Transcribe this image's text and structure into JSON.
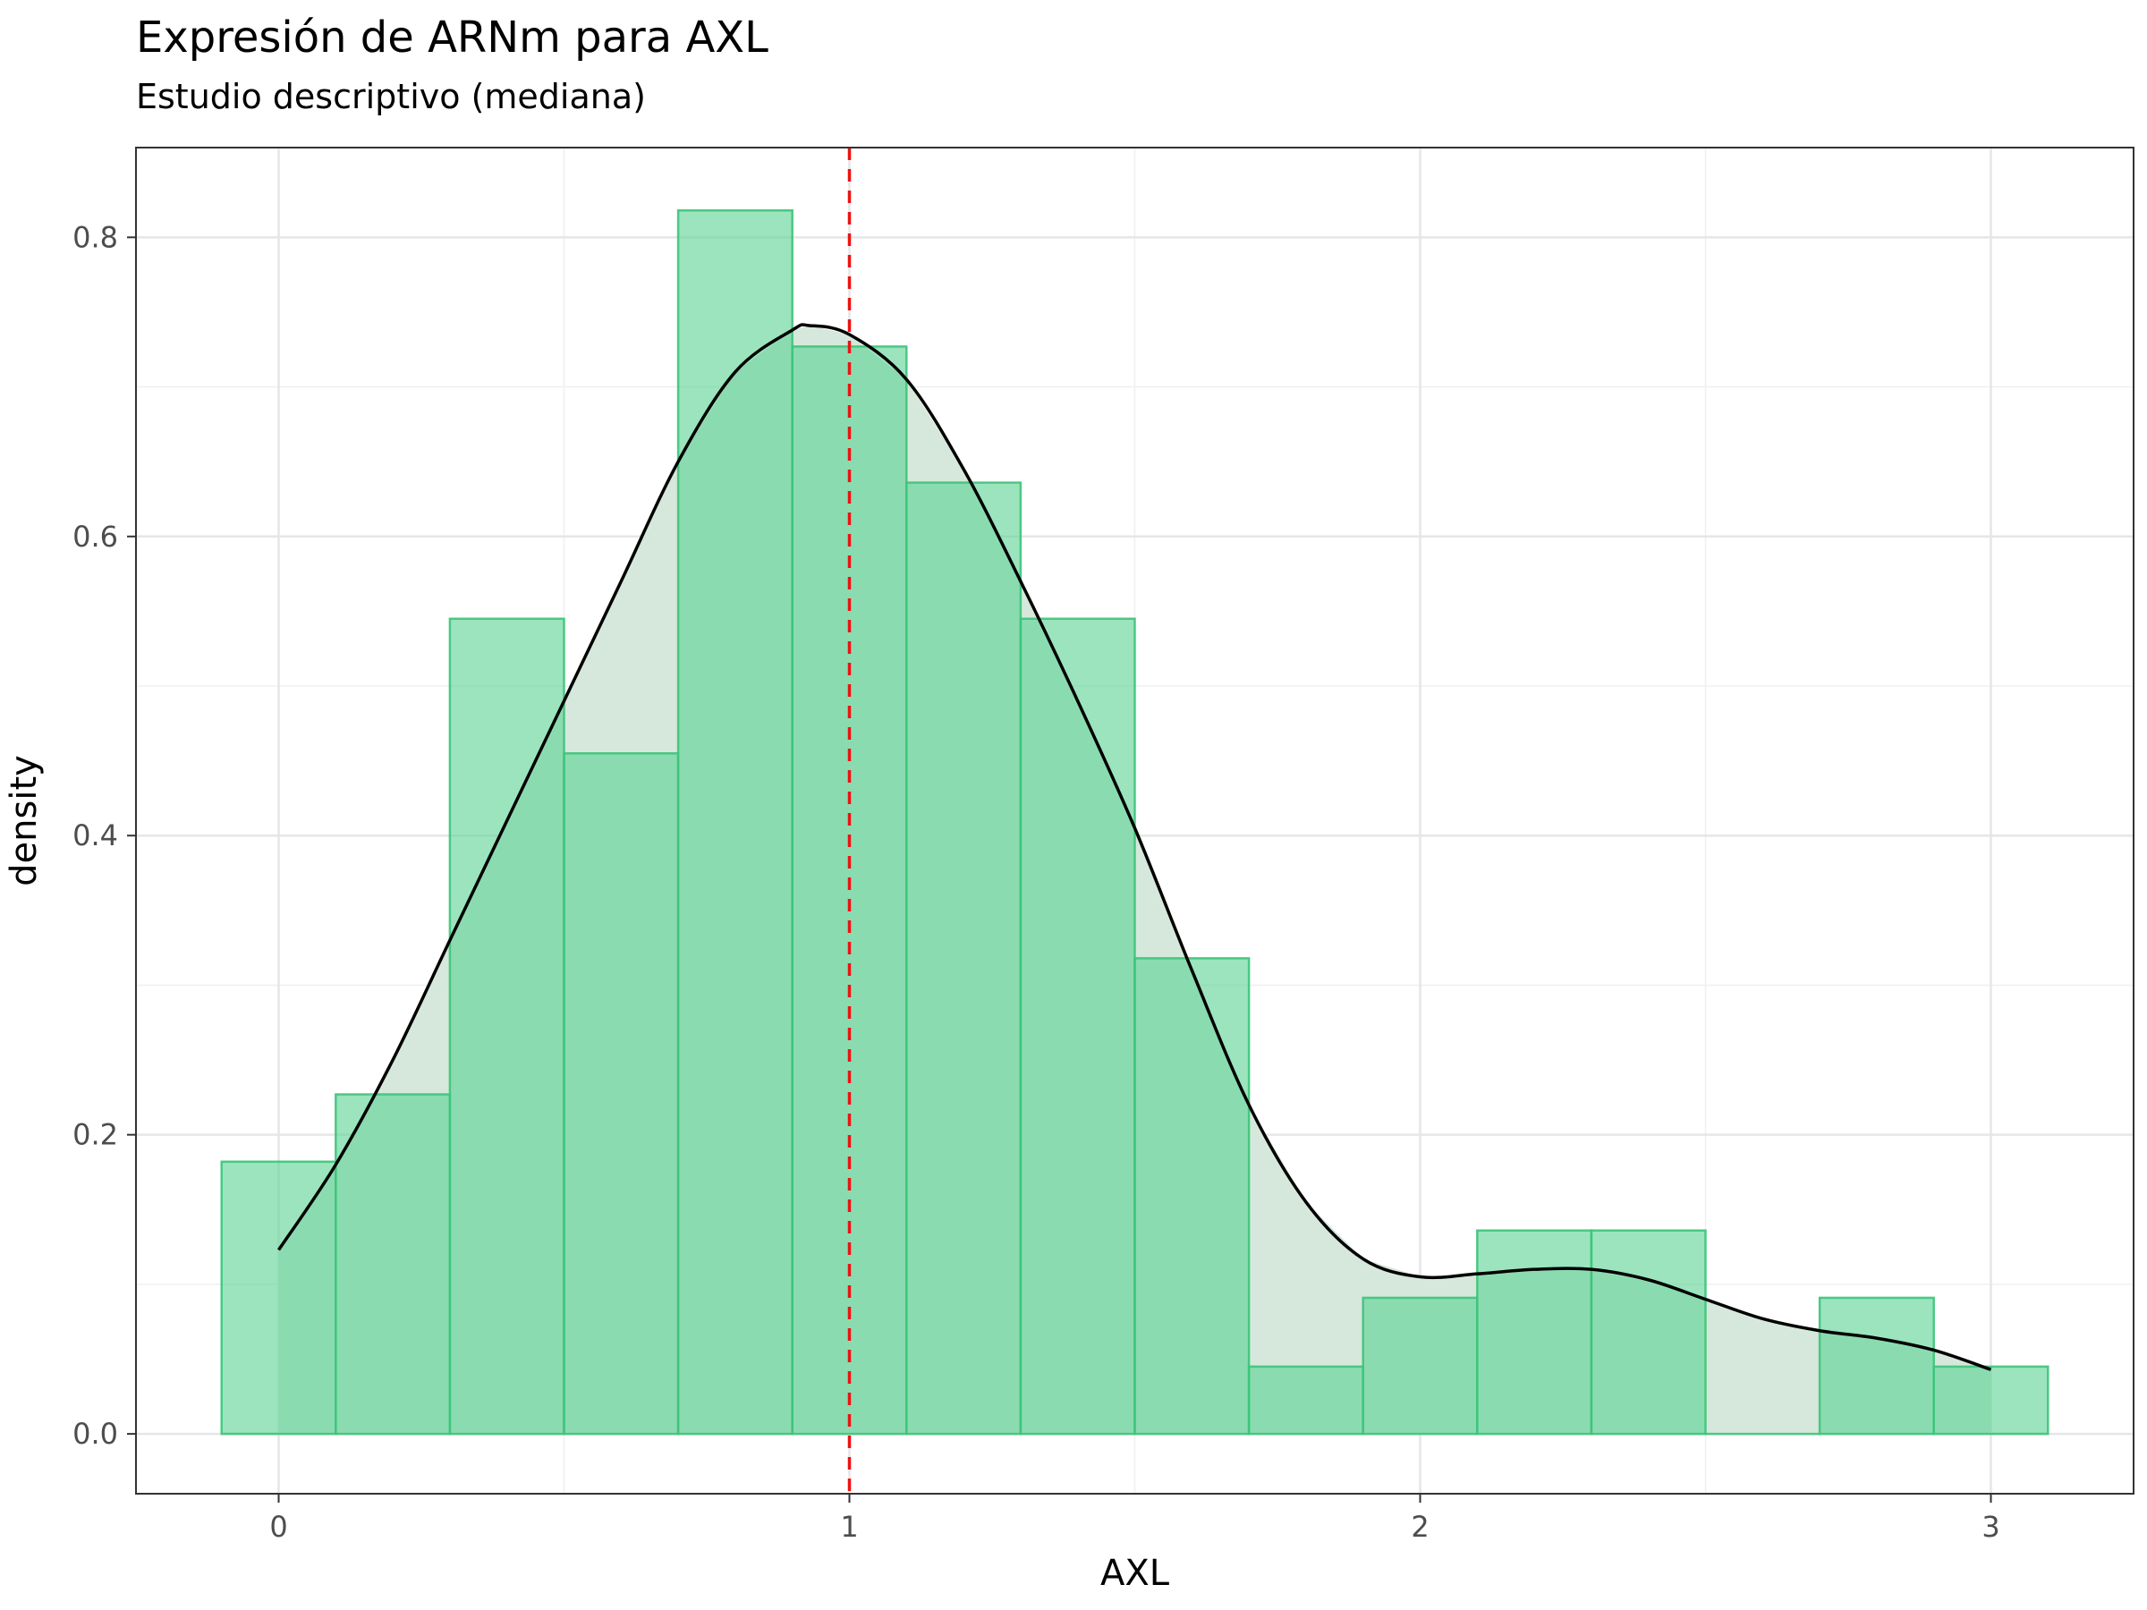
{
  "chart_data": {
    "type": "bar",
    "title": "Expresión de ARNm para AXL",
    "subtitle": "Estudio descriptivo (mediana)",
    "xlabel": "AXL",
    "ylabel": "density",
    "xlim": [
      -0.25,
      3.25
    ],
    "ylim": [
      -0.04,
      0.86
    ],
    "x_ticks": [
      0,
      1,
      2,
      3
    ],
    "y_ticks": [
      0.0,
      0.2,
      0.4,
      0.6,
      0.8
    ],
    "y_tick_labels": [
      "0.0",
      "0.2",
      "0.4",
      "0.6",
      "0.8"
    ],
    "grid": true,
    "legend": "none",
    "histogram": {
      "bin_width": 0.2,
      "bin_starts": [
        -0.1,
        0.1,
        0.3,
        0.5,
        0.7,
        0.9,
        1.1,
        1.3,
        1.5,
        1.7,
        1.9,
        2.1,
        2.3,
        2.5,
        2.7,
        2.9
      ],
      "density": [
        0.182,
        0.227,
        0.545,
        0.455,
        0.818,
        0.727,
        0.636,
        0.545,
        0.318,
        0.045,
        0.091,
        0.136,
        0.136,
        0.0,
        0.091,
        0.045
      ],
      "fill": "#5ed496",
      "stroke": "#3cc47a"
    },
    "density_curve": {
      "x": [
        0.0,
        0.1,
        0.2,
        0.3,
        0.4,
        0.5,
        0.6,
        0.7,
        0.8,
        0.9,
        0.93,
        1.0,
        1.1,
        1.2,
        1.3,
        1.4,
        1.5,
        1.6,
        1.7,
        1.8,
        1.9,
        2.0,
        2.1,
        2.2,
        2.3,
        2.4,
        2.5,
        2.6,
        2.7,
        2.8,
        2.9,
        3.0
      ],
      "y": [
        0.123,
        0.18,
        0.25,
        0.33,
        0.41,
        0.49,
        0.57,
        0.65,
        0.71,
        0.738,
        0.741,
        0.735,
        0.705,
        0.645,
        0.57,
        0.49,
        0.405,
        0.31,
        0.22,
        0.155,
        0.117,
        0.105,
        0.107,
        0.11,
        0.11,
        0.103,
        0.09,
        0.077,
        0.069,
        0.064,
        0.056,
        0.043
      ],
      "fill": "#d6e8db",
      "line": "#000000"
    },
    "median": {
      "x": 1.0,
      "color": "#ee1111",
      "style": "dashed"
    }
  }
}
